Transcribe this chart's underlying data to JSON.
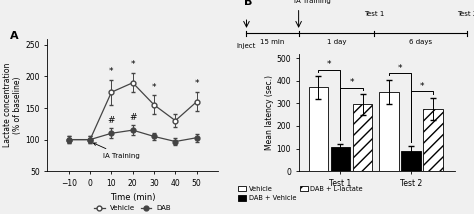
{
  "panel_A": {
    "vehicle_x": [
      -10,
      0,
      10,
      20,
      30,
      40,
      50
    ],
    "vehicle_y": [
      100,
      100,
      175,
      190,
      155,
      130,
      160
    ],
    "vehicle_err": [
      5,
      5,
      20,
      15,
      15,
      10,
      15
    ],
    "dab_x": [
      -10,
      0,
      10,
      20,
      30,
      40,
      50
    ],
    "dab_y": [
      100,
      100,
      110,
      115,
      105,
      97,
      103
    ],
    "dab_err": [
      5,
      5,
      8,
      8,
      6,
      5,
      6
    ],
    "vehicle_stars": [
      10,
      20,
      30,
      50
    ],
    "dab_hashes": [
      10,
      20
    ],
    "xlim": [
      -20,
      60
    ],
    "ylim": [
      50,
      260
    ],
    "yticks": [
      50,
      100,
      150,
      200,
      250
    ],
    "xticks": [
      -10,
      0,
      10,
      20,
      30,
      40,
      50
    ],
    "xlabel": "Time (min)",
    "ylabel": "Lactate concentration\n(% of baseline)"
  },
  "panel_B": {
    "vehicle_test1": 370,
    "vehicle_test1_err": 50,
    "dab_vehicle_test1": 105,
    "dab_vehicle_test1_err": 15,
    "dab_lactate_test1": 295,
    "dab_lactate_test1_err": 45,
    "vehicle_test2": 350,
    "vehicle_test2_err": 55,
    "dab_vehicle_test2": 90,
    "dab_vehicle_test2_err": 20,
    "dab_lactate_test2": 275,
    "dab_lactate_test2_err": 50,
    "ylim": [
      0,
      520
    ],
    "yticks": [
      0,
      100,
      200,
      300,
      400,
      500
    ],
    "ylabel": "Mean latency (sec.)"
  },
  "bg_color": "#f0f0f0",
  "line_color": "#444444"
}
